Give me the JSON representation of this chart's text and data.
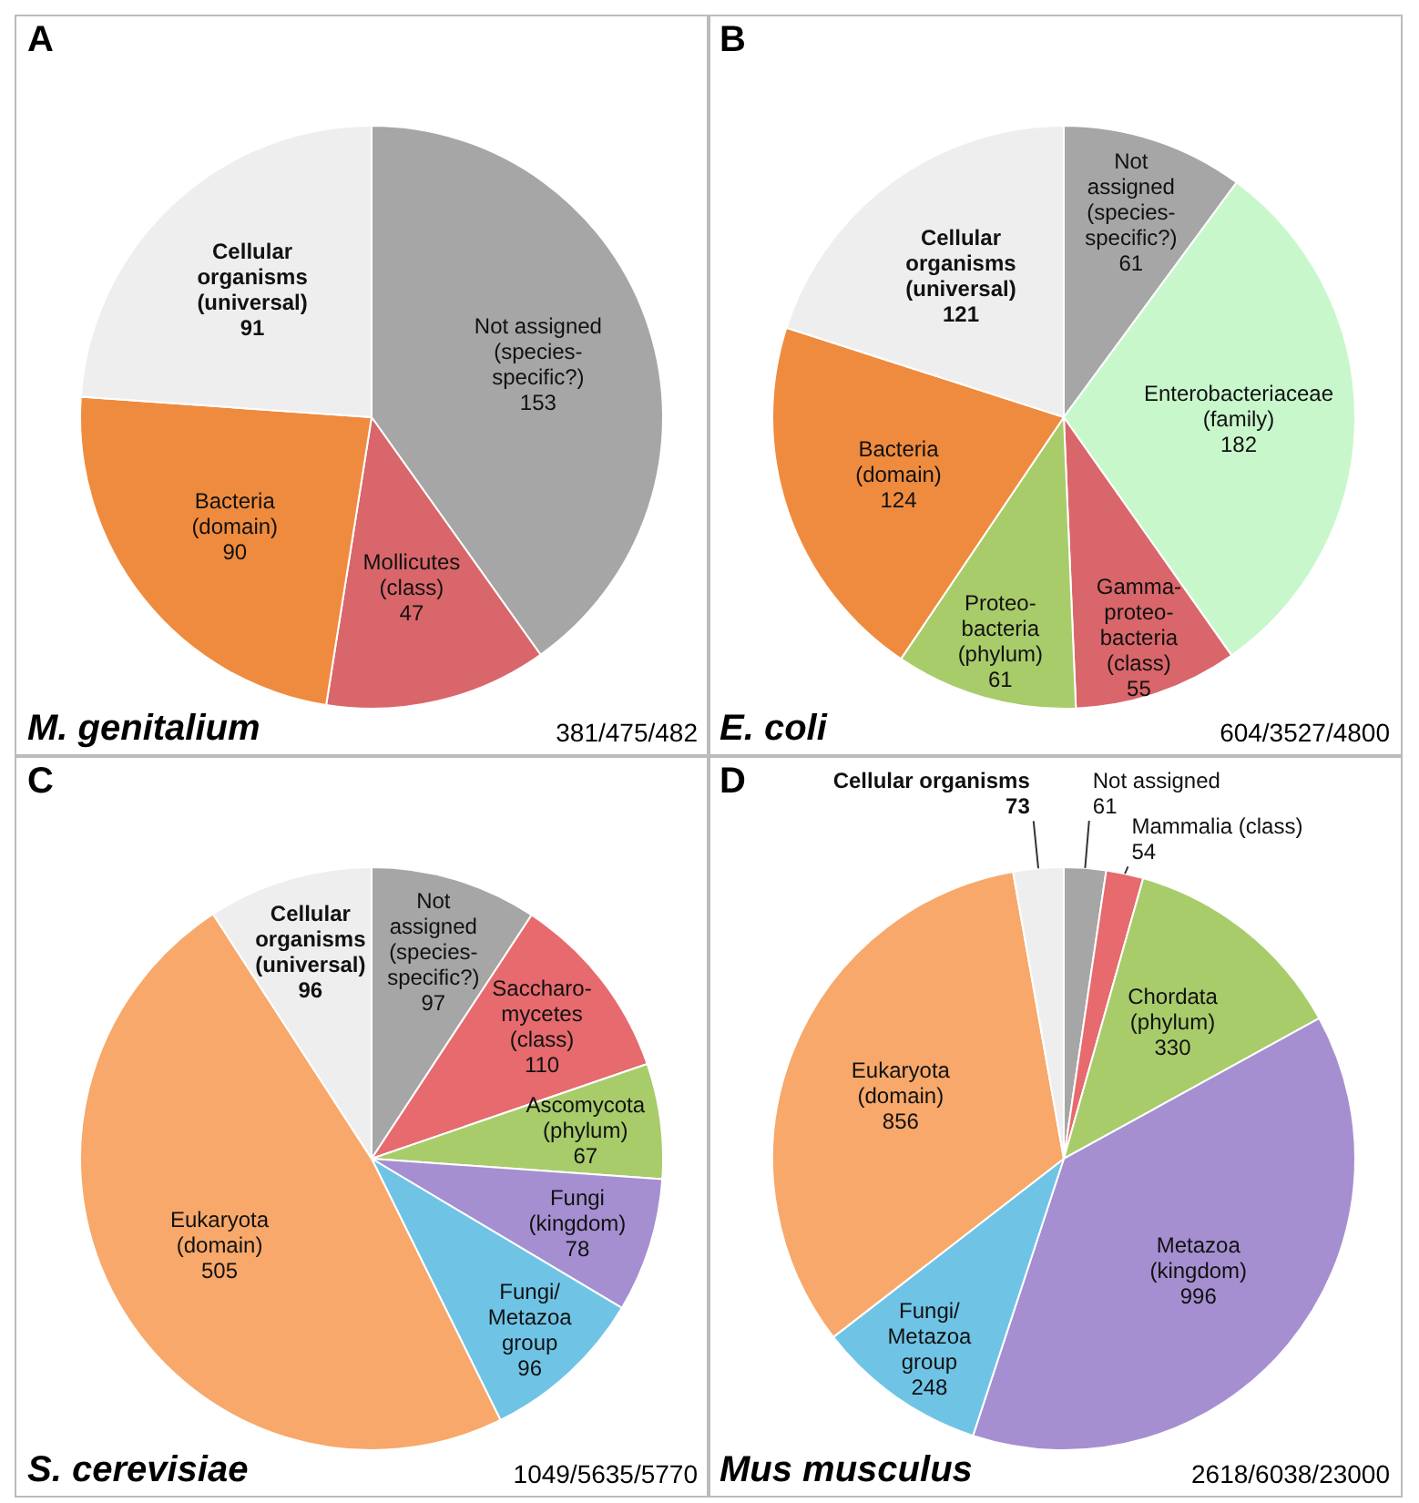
{
  "chart_data": [
    {
      "type": "pie",
      "title": "A",
      "subtitle": "M. genitalium",
      "annotations": [
        "381/475/482"
      ],
      "data_labels": true,
      "categories": [
        "Not assigned\n(species-\nspecific?)",
        "Mollicutes\n(class)",
        "Bacteria\n(domain)",
        "Cellular\norganisms\n(universal)"
      ],
      "values": [
        153,
        47,
        90,
        91
      ],
      "colors": [
        "#a6a6a6",
        "#d9666a",
        "#ef8b3e",
        "#eeeeee"
      ]
    },
    {
      "type": "pie",
      "title": "B",
      "subtitle": "E. coli",
      "annotations": [
        "604/3527/4800"
      ],
      "data_labels": true,
      "categories": [
        "Not\nassigned\n(species-\nspecific?)",
        "Enterobacteriaceae\n(family)",
        "Gamma-\nproteo-\nbacteria\n(class)",
        "Proteo-\nbacteria\n(phylum)",
        "Bacteria\n(domain)",
        "Cellular\norganisms\n(universal)"
      ],
      "values": [
        61,
        182,
        55,
        61,
        124,
        121
      ],
      "colors": [
        "#a6a6a6",
        "#c8f7cc",
        "#d9666a",
        "#a8cc6a",
        "#ef8b3e",
        "#eeeeee"
      ]
    },
    {
      "type": "pie",
      "title": "C",
      "subtitle": "S. cerevisiae",
      "annotations": [
        "1049/5635/5770"
      ],
      "data_labels": true,
      "categories": [
        "Not\nassigned\n(species-\nspecific?)",
        "Saccharo-\nmycetes\n(class)",
        "Ascomycota\n(phylum)",
        "Fungi\n(kingdom)",
        "Fungi/\nMetazoa\ngroup",
        "Eukaryota\n(domain)",
        "Cellular\norganisms\n(universal)"
      ],
      "values": [
        97,
        110,
        67,
        78,
        96,
        505,
        96
      ],
      "colors": [
        "#a6a6a6",
        "#e66a6e",
        "#a8cc6a",
        "#a58fd0",
        "#6fc4e6",
        "#f7a86a",
        "#eeeeee"
      ]
    },
    {
      "type": "pie",
      "title": "D",
      "subtitle": "Mus musculus",
      "annotations": [
        "2618/6038/23000"
      ],
      "data_labels": true,
      "categories": [
        "Not assigned",
        "Mammalia (class)",
        "Chordata\n(phylum)",
        "Metazoa\n(kingdom)",
        "Fungi/\nMetazoa\ngroup",
        "Eukaryota\n(domain)",
        "Cellular organisms"
      ],
      "values": [
        61,
        54,
        330,
        996,
        248,
        856,
        73
      ],
      "colors": [
        "#a6a6a6",
        "#e66a6e",
        "#a8cc6a",
        "#a58fd0",
        "#6fc4e6",
        "#f7a86a",
        "#eeeeee"
      ]
    }
  ]
}
